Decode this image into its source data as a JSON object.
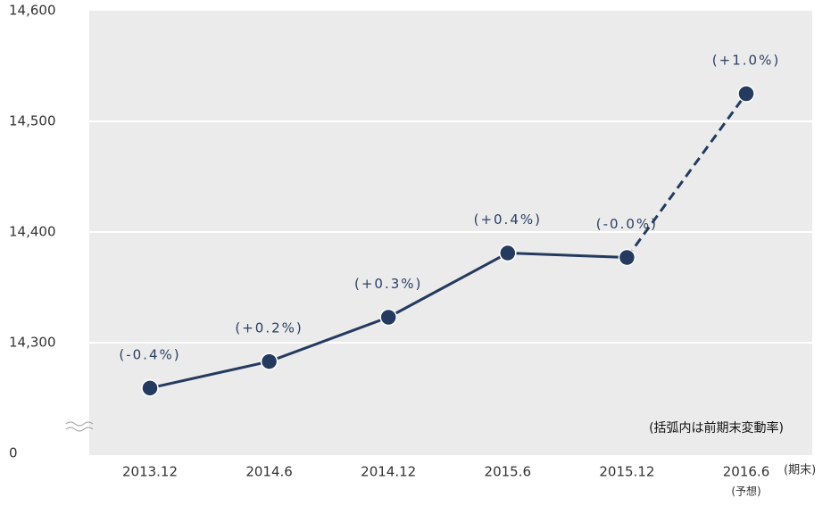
{
  "chart_data": {
    "type": "line",
    "categories": [
      "2013.12",
      "2014.6",
      "2014.12",
      "2015.6",
      "2015.12",
      "2016.6"
    ],
    "category_notes": [
      null,
      null,
      null,
      null,
      null,
      "(予想)"
    ],
    "x_unit": "(期末)",
    "values": [
      14259,
      14283,
      14323,
      14381,
      14377,
      14525
    ],
    "forecast": [
      false,
      false,
      false,
      false,
      false,
      true
    ],
    "annotations": [
      "(-0.4%)",
      "(+0.2%)",
      "(+0.3%)",
      "(+0.4%)",
      "(-0.0%)",
      "(+1.0%)"
    ],
    "note": "(括弧内は前期末変動率)",
    "color": "#243a5e",
    "ylim": [
      0,
      14600
    ],
    "axis_break": {
      "from": 0,
      "to": 14200
    },
    "yticks": [
      0,
      {
        "value": 14300,
        "label": "14,300"
      },
      {
        "value": 14400,
        "label": "14,400"
      },
      {
        "value": 14500,
        "label": "14,500"
      },
      {
        "value": 14600,
        "label": "14,600"
      }
    ],
    "grid": true
  }
}
